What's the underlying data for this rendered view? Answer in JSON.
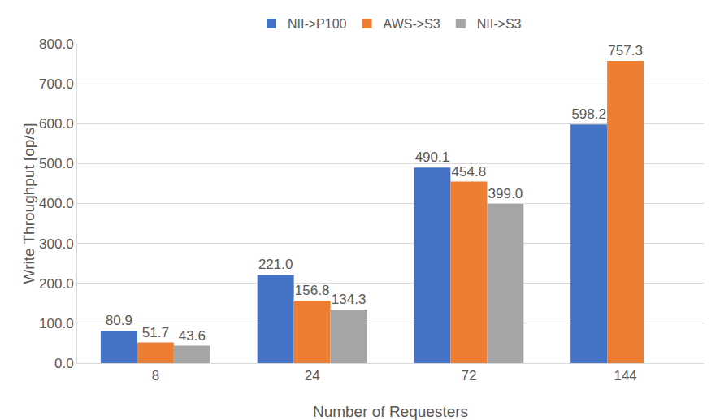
{
  "chart_data": {
    "type": "bar",
    "x_label": "Number of Requesters",
    "y_label": "Write Throughput [op/s]",
    "categories": [
      "8",
      "24",
      "72",
      "144"
    ],
    "series": [
      {
        "name": "NII->P100",
        "color": "#4472c4",
        "values": [
          80.9,
          221.0,
          490.1,
          598.2
        ],
        "value_labels": [
          "80.9",
          "221.0",
          "490.1",
          "598.2"
        ]
      },
      {
        "name": "AWS->S3",
        "color": "#ed7d31",
        "values": [
          51.7,
          156.8,
          454.8,
          757.3
        ],
        "value_labels": [
          "51.7",
          "156.8",
          "454.8",
          "757.3"
        ]
      },
      {
        "name": "NII->S3",
        "color": "#a5a5a5",
        "values": [
          43.6,
          134.3,
          399.0,
          null
        ],
        "value_labels": [
          "43.6",
          "134.3",
          "399.0",
          null
        ]
      }
    ],
    "ylim": [
      0,
      800
    ],
    "yticks": [
      {
        "value": 0,
        "label": "0.0"
      },
      {
        "value": 100,
        "label": "100.0"
      },
      {
        "value": 200,
        "label": "200.0"
      },
      {
        "value": 300,
        "label": "300.0"
      },
      {
        "value": 400,
        "label": "400.0"
      },
      {
        "value": 500,
        "label": "500.0"
      },
      {
        "value": 600,
        "label": "600.0"
      },
      {
        "value": 700,
        "label": "700.0"
      },
      {
        "value": 800,
        "label": "800.0"
      }
    ],
    "grid": true,
    "legend": "top",
    "data_labels": true
  }
}
